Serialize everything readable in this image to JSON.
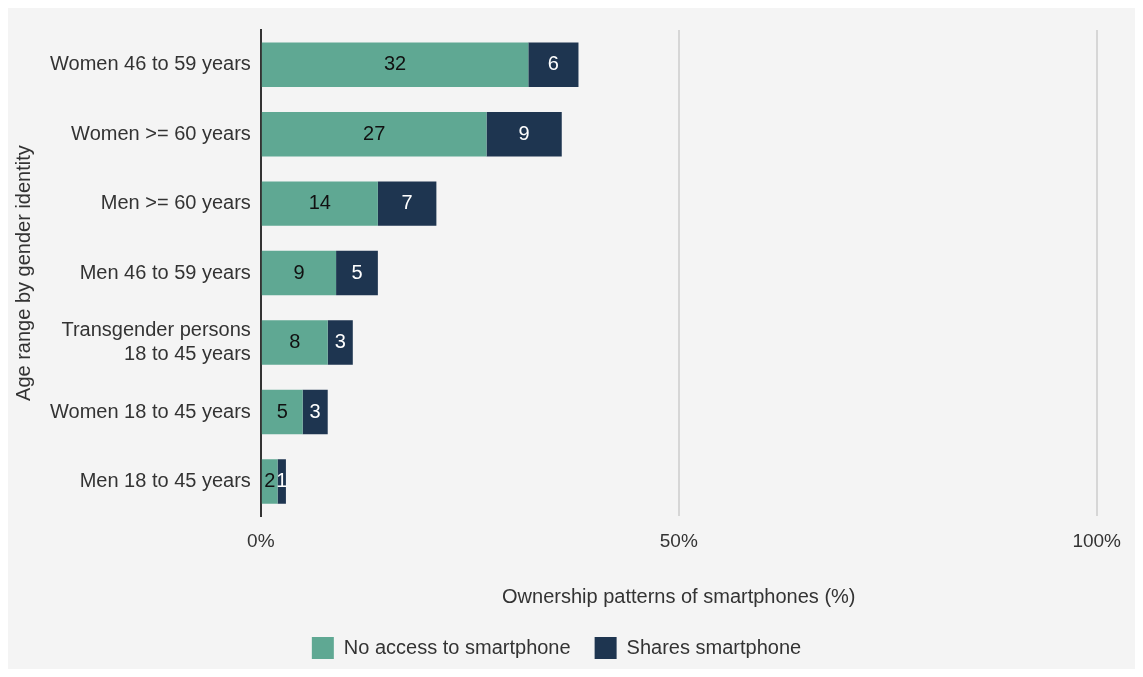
{
  "chart_data": {
    "type": "bar",
    "orientation": "horizontal",
    "stacked": true,
    "xlabel": "Ownership patterns of smartphones (%)",
    "ylabel": "Age range by gender identity",
    "categories": [
      "Women 46 to 59 years",
      "Women >= 60 years",
      "Men >= 60 years",
      "Men 46 to 59 years",
      "Transgender persons 18 to 45 years",
      "Women 18 to 45 years",
      "Men 18 to 45 years"
    ],
    "series": [
      {
        "name": "No access to smartphone",
        "color": "#5fa893",
        "values": [
          32,
          27,
          14,
          9,
          8,
          5,
          2
        ]
      },
      {
        "name": "Shares smartphone",
        "color": "#1e3550",
        "values": [
          6,
          9,
          7,
          5,
          3,
          3,
          1
        ]
      }
    ],
    "xlim": [
      0,
      100
    ],
    "xticks": [
      {
        "value": 0,
        "label": "0%"
      },
      {
        "value": 50,
        "label": "50%"
      },
      {
        "value": 100,
        "label": "100%"
      }
    ],
    "grid": "x",
    "legend": "bottom",
    "data_labels": true
  }
}
